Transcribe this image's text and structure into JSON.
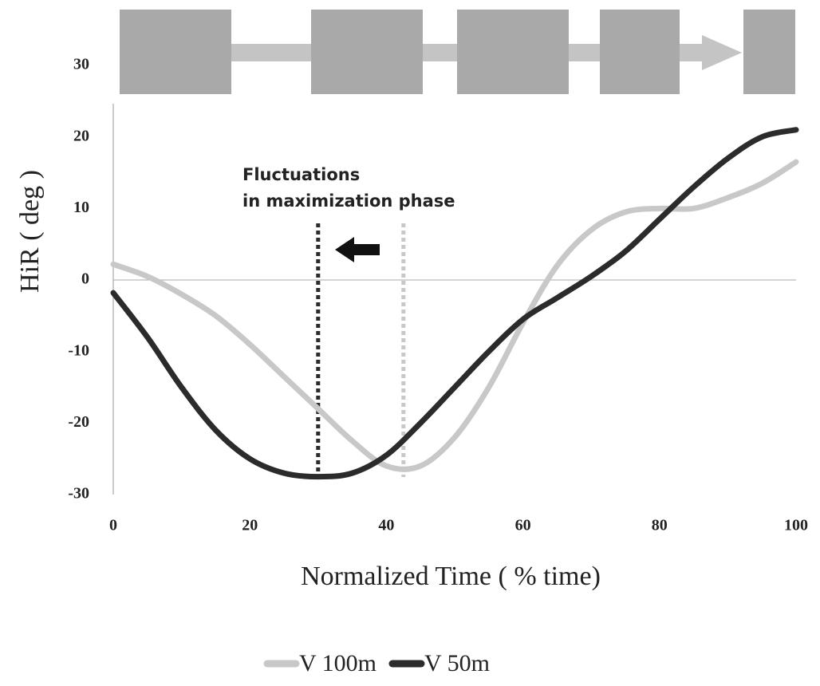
{
  "chart_data": {
    "type": "line",
    "xlabel": "Normalized Time ( % time)",
    "ylabel": "HiR ( deg )",
    "x": [
      0,
      5,
      10,
      15,
      20,
      25,
      30,
      35,
      40,
      45,
      50,
      55,
      60,
      65,
      70,
      75,
      80,
      85,
      90,
      95,
      100
    ],
    "series": [
      {
        "name": "V 100m",
        "color": "#c8c8c8",
        "values": [
          2.2,
          0.5,
          -2,
          -5,
          -9,
          -13.5,
          -18,
          -22.5,
          -26,
          -26,
          -22,
          -15,
          -6,
          2,
          7,
          9.5,
          10,
          10,
          11.5,
          13.5,
          16.5
        ]
      },
      {
        "name": "V 50m",
        "color": "#2b2b2b",
        "values": [
          -1.8,
          -8,
          -15,
          -21,
          -25,
          -27,
          -27.5,
          -27,
          -24.5,
          -20,
          -15,
          -10,
          -5.5,
          -2.5,
          0.5,
          4,
          8.5,
          13,
          17,
          20,
          21
        ]
      }
    ],
    "vlines": [
      {
        "x": 30,
        "color": "#2b2b2b"
      },
      {
        "x": 42.5,
        "color": "#c8c8c8"
      }
    ],
    "annotation": [
      "Fluctuations",
      "in maximization phase"
    ],
    "xlim": [
      0,
      100
    ],
    "xticks": [
      0,
      20,
      40,
      60,
      80,
      100
    ],
    "ylim": [
      -30,
      30
    ],
    "yticks": [
      -30,
      -20,
      -10,
      0,
      10,
      20,
      30
    ]
  }
}
